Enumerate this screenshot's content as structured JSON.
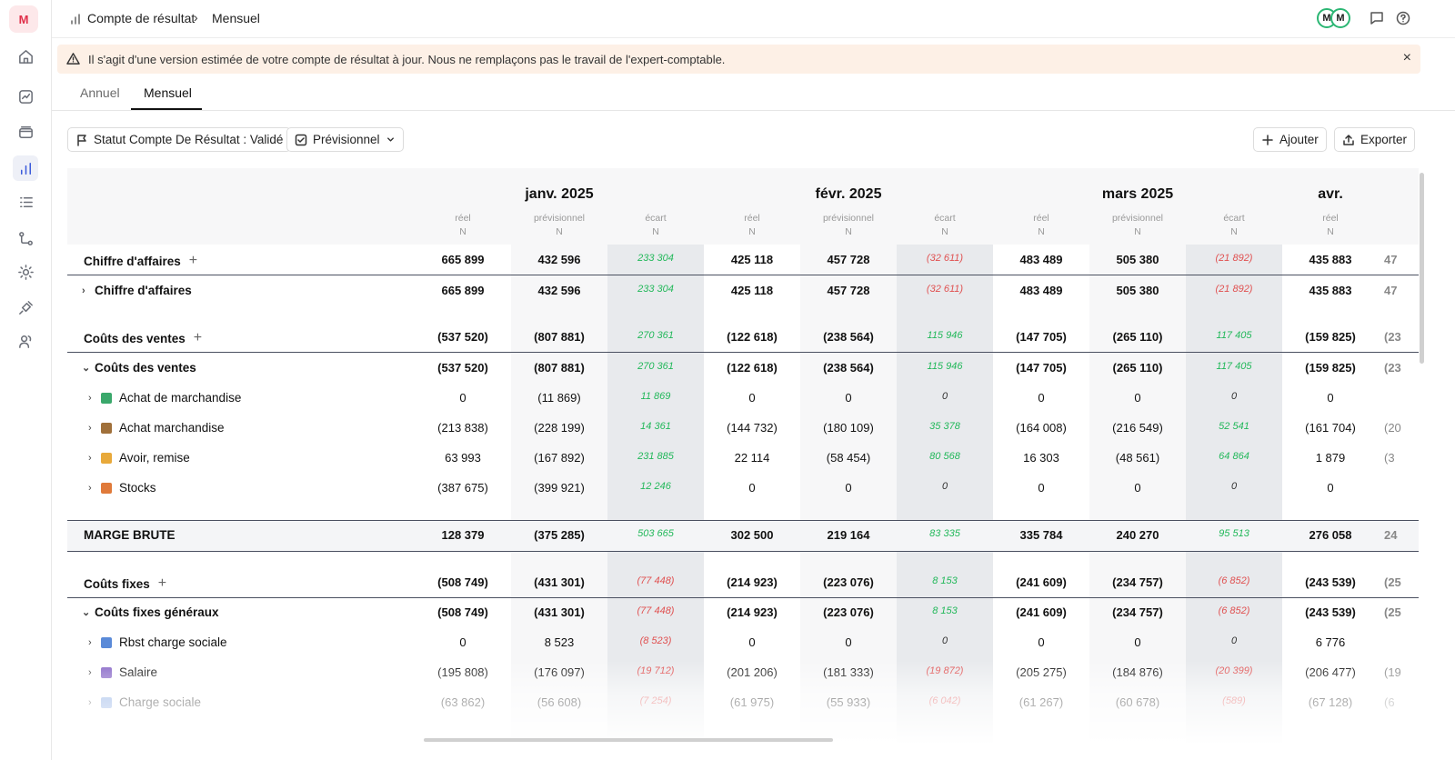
{
  "sidebar": {
    "logo": "M",
    "items": [
      {
        "name": "home-icon"
      },
      {
        "name": "activity-icon"
      },
      {
        "name": "cards-icon"
      },
      {
        "name": "chart-bar-icon"
      },
      {
        "name": "list-icon"
      },
      {
        "name": "flow-icon"
      },
      {
        "name": "gear-icon"
      },
      {
        "name": "plug-icon"
      },
      {
        "name": "users-icon"
      }
    ]
  },
  "breadcrumb": {
    "root": "Compte de résultat",
    "current": "Mensuel"
  },
  "header": {
    "avatar1": "M",
    "avatar2": "M"
  },
  "banner": {
    "text": "Il s'agit d'une version estimée de votre compte de résultat à jour. Nous ne remplaçons pas le travail de l'expert-comptable.",
    "close": "×"
  },
  "tabs": [
    {
      "label": "Annuel"
    },
    {
      "label": "Mensuel"
    }
  ],
  "toolbar": {
    "status_label": "Statut Compte De Résultat : Validé",
    "previsionnel_label": "Prévisionnel",
    "add_label": "Ajouter",
    "export_label": "Exporter"
  },
  "colors": {
    "positive": "#22b85a",
    "negative": "#e05050",
    "accent": "#3b5bdb",
    "banner_bg": "#fdf0e6"
  },
  "table": {
    "months": [
      "janv. 2025",
      "févr. 2025",
      "mars 2025",
      "avr."
    ],
    "subcols": [
      "réel",
      "prévisionnel",
      "écart"
    ],
    "subcol_period": "N",
    "rows": [
      {
        "label": "Chiffre d'affaires",
        "plus": "+",
        "style": "section",
        "values": [
          [
            "665 899",
            "432 596",
            "233 304"
          ],
          [
            "425 118",
            "457 728",
            "(32 611)"
          ],
          [
            "483 489",
            "505 380",
            "(21 892)"
          ],
          [
            "435 883",
            "47"
          ]
        ]
      },
      {
        "label": "Chiffre d'affaires",
        "caret": "›",
        "style": "group",
        "values": [
          [
            "665 899",
            "432 596",
            "233 304"
          ],
          [
            "425 118",
            "457 728",
            "(32 611)"
          ],
          [
            "483 489",
            "505 380",
            "(21 892)"
          ],
          [
            "435 883",
            "47"
          ]
        ]
      },
      {
        "label": "Coûts des ventes",
        "plus": "+",
        "style": "section",
        "values": [
          [
            "(537 520)",
            "(807 881)",
            "270 361"
          ],
          [
            "(122 618)",
            "(238 564)",
            "115 946"
          ],
          [
            "(147 705)",
            "(265 110)",
            "117 405"
          ],
          [
            "(159 825)",
            "(23"
          ]
        ]
      },
      {
        "label": "Coûts des ventes",
        "caret": "⌄",
        "style": "group",
        "values": [
          [
            "(537 520)",
            "(807 881)",
            "270 361"
          ],
          [
            "(122 618)",
            "(238 564)",
            "115 946"
          ],
          [
            "(147 705)",
            "(265 110)",
            "117 405"
          ],
          [
            "(159 825)",
            "(23"
          ]
        ]
      },
      {
        "label": "Achat de marchandise",
        "caret": "›",
        "emoji": "shirt",
        "style": "item",
        "values": [
          [
            "0",
            "(11 869)",
            "11 869"
          ],
          [
            "0",
            "0",
            "0"
          ],
          [
            "0",
            "0",
            "0"
          ],
          [
            "0",
            ""
          ]
        ]
      },
      {
        "label": "Achat marchandise",
        "caret": "›",
        "emoji": "box",
        "style": "item",
        "values": [
          [
            "(213 838)",
            "(228 199)",
            "14 361"
          ],
          [
            "(144 732)",
            "(180 109)",
            "35 378"
          ],
          [
            "(164 008)",
            "(216 549)",
            "52 541"
          ],
          [
            "(161 704)",
            "(20"
          ]
        ]
      },
      {
        "label": "Avoir, remise",
        "caret": "›",
        "emoji": "bag",
        "style": "item",
        "values": [
          [
            "63 993",
            "(167 892)",
            "231 885"
          ],
          [
            "22 114",
            "(58 454)",
            "80 568"
          ],
          [
            "16 303",
            "(48 561)",
            "64 864"
          ],
          [
            "1 879",
            "(3"
          ]
        ]
      },
      {
        "label": "Stocks",
        "caret": "›",
        "emoji": "warehouse",
        "style": "item",
        "values": [
          [
            "(387 675)",
            "(399 921)",
            "12 246"
          ],
          [
            "0",
            "0",
            "0"
          ],
          [
            "0",
            "0",
            "0"
          ],
          [
            "0",
            ""
          ]
        ]
      },
      {
        "label": "MARGE BRUTE",
        "style": "total",
        "values": [
          [
            "128 379",
            "(375 285)",
            "503 665"
          ],
          [
            "302 500",
            "219 164",
            "83 335"
          ],
          [
            "335 784",
            "240 270",
            "95 513"
          ],
          [
            "276 058",
            "24"
          ]
        ]
      },
      {
        "label": "Coûts fixes",
        "plus": "+",
        "style": "section",
        "values": [
          [
            "(508 749)",
            "(431 301)",
            "(77 448)"
          ],
          [
            "(214 923)",
            "(223 076)",
            "8 153"
          ],
          [
            "(241 609)",
            "(234 757)",
            "(6 852)"
          ],
          [
            "(243 539)",
            "(25"
          ]
        ]
      },
      {
        "label": "Coûts fixes généraux",
        "caret": "⌄",
        "style": "group",
        "values": [
          [
            "(508 749)",
            "(431 301)",
            "(77 448)"
          ],
          [
            "(214 923)",
            "(223 076)",
            "8 153"
          ],
          [
            "(241 609)",
            "(234 757)",
            "(6 852)"
          ],
          [
            "(243 539)",
            "(25"
          ]
        ]
      },
      {
        "label": "Rbst charge sociale",
        "caret": "›",
        "emoji": "books",
        "style": "item",
        "values": [
          [
            "0",
            "8 523",
            "(8 523)"
          ],
          [
            "0",
            "0",
            "0"
          ],
          [
            "0",
            "0",
            "0"
          ],
          [
            "6 776",
            ""
          ]
        ]
      },
      {
        "label": "Salaire",
        "caret": "›",
        "emoji": "people",
        "style": "item",
        "values": [
          [
            "(195 808)",
            "(176 097)",
            "(19 712)"
          ],
          [
            "(201 206)",
            "(181 333)",
            "(19 872)"
          ],
          [
            "(205 275)",
            "(184 876)",
            "(20 399)"
          ],
          [
            "(206 477)",
            "(19"
          ]
        ]
      },
      {
        "label": "Charge sociale",
        "caret": "›",
        "emoji": "books2",
        "style": "item",
        "values": [
          [
            "(63 862)",
            "(56 608)",
            "(7 254)"
          ],
          [
            "(61 975)",
            "(55 933)",
            "(6 042)"
          ],
          [
            "(61 267)",
            "(60 678)",
            "(589)"
          ],
          [
            "(67 128)",
            "(6"
          ]
        ]
      }
    ]
  }
}
